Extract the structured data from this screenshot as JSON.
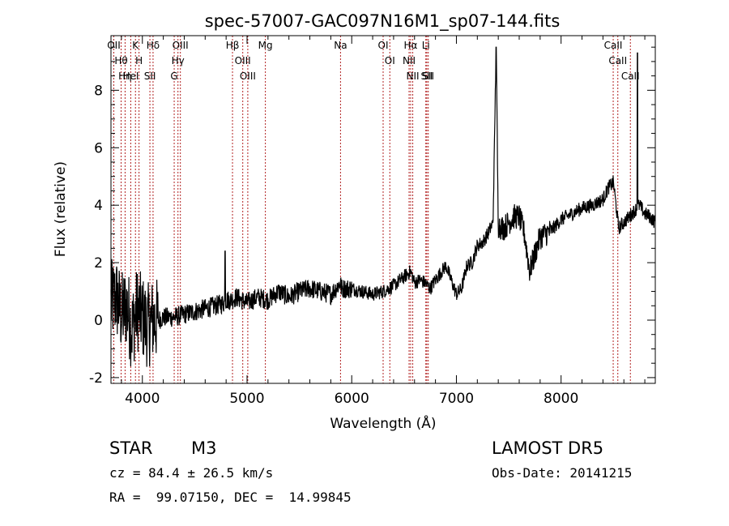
{
  "chart_data": {
    "type": "line",
    "title": "spec-57007-GAC097N16M1_sp07-144.fits",
    "xlabel": "Wavelength (Å)",
    "ylabel": "Flux (relative)",
    "xlim": [
      3700,
      8900
    ],
    "ylim": [
      -2.2,
      9.9
    ],
    "xticks": [
      4000,
      5000,
      6000,
      7000,
      8000
    ],
    "xtick_labels": [
      "4000",
      "5000",
      "6000",
      "7000",
      "8000"
    ],
    "yticks": [
      -2,
      0,
      2,
      4,
      6,
      8
    ],
    "ytick_labels": [
      "-2",
      "0",
      "2",
      "4",
      "6",
      "8"
    ],
    "grid": false,
    "series": [
      {
        "x": [
          3700,
          3750,
          3800,
          3850,
          3900,
          3950,
          4000,
          4050,
          4100,
          4150,
          4200,
          4300,
          4400,
          4500,
          4600,
          4700,
          4780,
          4800,
          4850,
          4900,
          5000,
          5100,
          5200,
          5300,
          5400,
          5500,
          5600,
          5700,
          5800,
          5893,
          5900,
          6000,
          6100,
          6200,
          6300,
          6400,
          6500,
          6563,
          6600,
          6650,
          6700,
          6750,
          6800,
          6900,
          6950,
          7000,
          7050,
          7100,
          7150,
          7200,
          7250,
          7300,
          7350,
          7380,
          7400,
          7450,
          7500,
          7550,
          7600,
          7650,
          7700,
          7750,
          7800,
          7900,
          8000,
          8100,
          8200,
          8300,
          8400,
          8450,
          8500,
          8550,
          8600,
          8650,
          8700,
          8750,
          8800,
          8850,
          8900
        ],
        "y": [
          0.6,
          0.8,
          0.2,
          0.5,
          -0.3,
          0.4,
          0.1,
          -0.2,
          0.0,
          0.0,
          0.1,
          0.1,
          0.2,
          0.3,
          0.4,
          0.5,
          0.6,
          0.7,
          0.7,
          0.8,
          0.6,
          0.8,
          0.7,
          1.0,
          0.8,
          1.0,
          1.1,
          1.0,
          0.9,
          1.3,
          1.1,
          1.1,
          1.0,
          0.9,
          1.0,
          1.2,
          1.5,
          1.7,
          1.3,
          1.4,
          1.3,
          1.1,
          1.4,
          1.9,
          1.4,
          0.9,
          1.1,
          1.9,
          2.0,
          2.6,
          2.7,
          3.0,
          3.4,
          9.5,
          3.3,
          3.2,
          3.4,
          3.6,
          3.6,
          3.0,
          1.7,
          2.3,
          2.9,
          3.1,
          3.5,
          3.7,
          3.9,
          4.0,
          4.2,
          4.6,
          4.8,
          3.2,
          3.4,
          3.6,
          3.8,
          4.0,
          3.7,
          3.6,
          3.4
        ]
      }
    ],
    "lines": [
      {
        "label": "OII",
        "wavelength": 3727
      },
      {
        "label": "Hθ",
        "wavelength": 3797
      },
      {
        "label": "Hη",
        "wavelength": 3835
      },
      {
        "label": "HeI",
        "wavelength": 3889
      },
      {
        "label": "K",
        "wavelength": 3934
      },
      {
        "label": "H",
        "wavelength": 3968
      },
      {
        "label": "Hδ",
        "wavelength": 4102
      },
      {
        "label": "SII",
        "wavelength": 4072
      },
      {
        "label": "OIII",
        "wavelength": 4363
      },
      {
        "label": "Hγ",
        "wavelength": 4340
      },
      {
        "label": "G",
        "wavelength": 4304
      },
      {
        "label": "Hβ",
        "wavelength": 4861
      },
      {
        "label": "OIII",
        "wavelength": 4959
      },
      {
        "label": "OIII",
        "wavelength": 5007
      },
      {
        "label": "Mg",
        "wavelength": 5175
      },
      {
        "label": "Na",
        "wavelength": 5893
      },
      {
        "label": "OI",
        "wavelength": 6300
      },
      {
        "label": "OI",
        "wavelength": 6364
      },
      {
        "label": "Hα",
        "wavelength": 6563
      },
      {
        "label": "NII",
        "wavelength": 6548
      },
      {
        "label": "NII",
        "wavelength": 6583
      },
      {
        "label": "SII",
        "wavelength": 6717
      },
      {
        "label": "Li",
        "wavelength": 6708
      },
      {
        "label": "SII",
        "wavelength": 6731
      },
      {
        "label": "CaII",
        "wavelength": 8498
      },
      {
        "label": "CaII",
        "wavelength": 8542
      },
      {
        "label": "CaII",
        "wavelength": 8662
      }
    ],
    "colors": {
      "axes": "#000000",
      "spectrum": "#000000",
      "line_markers": "#b22222"
    }
  },
  "info": {
    "class_label": "STAR",
    "subclass": "M3",
    "survey": "LAMOST DR5",
    "cz": "cz = 84.4 ± 26.5 km/s",
    "obs_date": "Obs-Date: 20141215",
    "radec": "RA =  99.07150, DEC =  14.99845"
  }
}
